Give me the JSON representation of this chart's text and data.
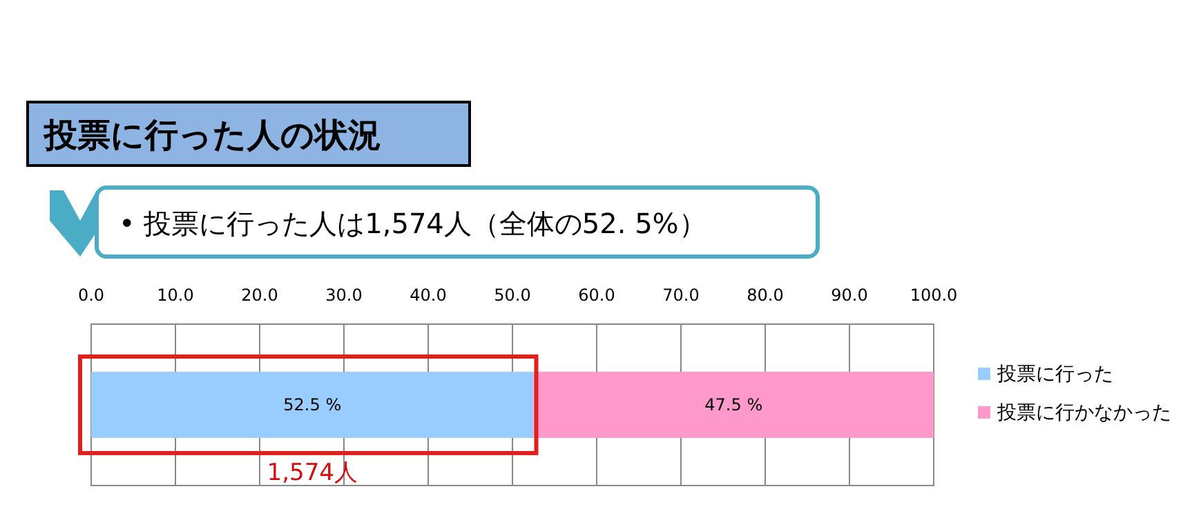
{
  "chart_data": {
    "type": "bar",
    "orientation": "horizontal",
    "stacked": true,
    "title": "投票に行った人の状況",
    "subtitle": "• 投票に行った人は1,574人（全体の52. 5%）",
    "categories": [
      null
    ],
    "series": [
      {
        "name": "投票に行った",
        "color": "#99ccff",
        "values": [
          52.5
        ],
        "value_labels": [
          "52.5 %"
        ]
      },
      {
        "name": "投票に行かなかった",
        "color": "#ff99cc",
        "values": [
          47.5
        ],
        "value_labels": [
          "47.5 %"
        ]
      }
    ],
    "xlim": [
      0,
      100
    ],
    "xticks": [
      {
        "value": 0,
        "label": "0.0"
      },
      {
        "value": 10,
        "label": "10.0"
      },
      {
        "value": 20,
        "label": "20.0"
      },
      {
        "value": 30,
        "label": "30.0"
      },
      {
        "value": 40,
        "label": "40.0"
      },
      {
        "value": 50,
        "label": "50.0"
      },
      {
        "value": 60,
        "label": "60.0"
      },
      {
        "value": 70,
        "label": "70.0"
      },
      {
        "value": 80,
        "label": "80.0"
      },
      {
        "value": 90,
        "label": "90.0"
      },
      {
        "value": 100,
        "label": "100.0"
      }
    ],
    "grid": "x",
    "legend": "right",
    "annotations": [
      "1,574人"
    ]
  }
}
